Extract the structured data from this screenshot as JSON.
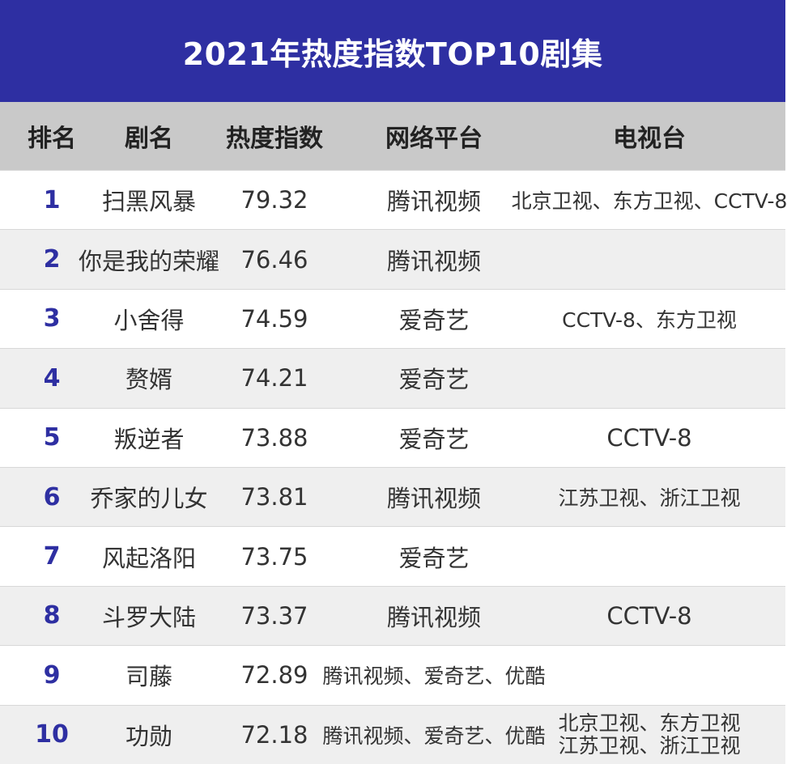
{
  "title": "2021年热度指数TOP10剧集",
  "headers": {
    "rank": "排名",
    "name": "剧名",
    "heat": "热度指数",
    "platform": "网络平台",
    "tv": "电视台"
  },
  "rows": [
    {
      "rank": "1",
      "name": "扫黑风暴",
      "heat": "79.32",
      "platform": "腾讯视频",
      "tv": "北京卫视、东方卫视、CCTV-8"
    },
    {
      "rank": "2",
      "name": "你是我的荣耀",
      "heat": "76.46",
      "platform": "腾讯视频",
      "tv": ""
    },
    {
      "rank": "3",
      "name": "小舍得",
      "heat": "74.59",
      "platform": "爱奇艺",
      "tv": "CCTV-8、东方卫视"
    },
    {
      "rank": "4",
      "name": "赘婿",
      "heat": "74.21",
      "platform": "爱奇艺",
      "tv": ""
    },
    {
      "rank": "5",
      "name": "叛逆者",
      "heat": "73.88",
      "platform": "爱奇艺",
      "tv": "CCTV-8"
    },
    {
      "rank": "6",
      "name": "乔家的儿女",
      "heat": "73.81",
      "platform": "腾讯视频",
      "tv": "江苏卫视、浙江卫视"
    },
    {
      "rank": "7",
      "name": "风起洛阳",
      "heat": "73.75",
      "platform": "爱奇艺",
      "tv": ""
    },
    {
      "rank": "8",
      "name": "斗罗大陆",
      "heat": "73.37",
      "platform": "腾讯视频",
      "tv": "CCTV-8"
    },
    {
      "rank": "9",
      "name": "司藤",
      "heat": "72.89",
      "platform": "腾讯视频、爱奇艺、优酷",
      "tv": ""
    },
    {
      "rank": "10",
      "name": "功勋",
      "heat": "72.18",
      "platform": "腾讯视频、爱奇艺、优酷",
      "tv_lines": [
        "北京卫视、东方卫视",
        "江苏卫视、浙江卫视"
      ]
    }
  ],
  "colors": {
    "title_bg": "#2e2fa2",
    "header_bg": "#c9c9c9",
    "rank_color": "#2e2fa2",
    "row_alt_bg": "#efefef"
  }
}
